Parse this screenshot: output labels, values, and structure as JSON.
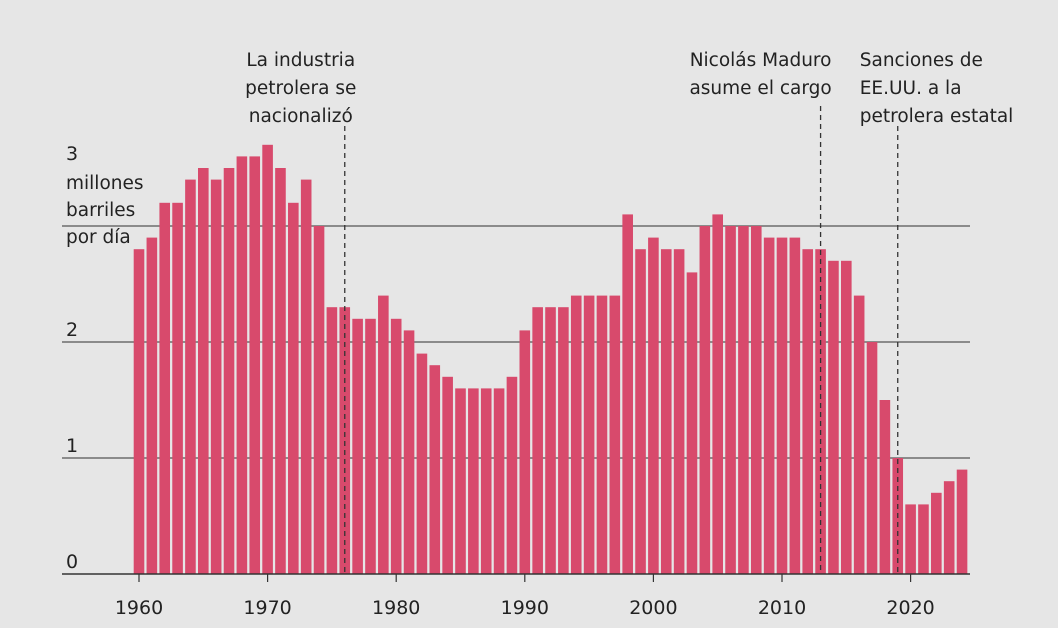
{
  "chart_data": {
    "type": "bar",
    "title": "",
    "ylabel": [
      "millones",
      "barriles",
      "por día"
    ],
    "xlabel": "",
    "ylim": [
      0,
      3.6
    ],
    "yticks": [
      0,
      1,
      2,
      3
    ],
    "xticks": [
      1960,
      1970,
      1980,
      1990,
      2000,
      2010,
      2020
    ],
    "grid": true,
    "bar_color": "#d84a6c",
    "x": [
      1960,
      1961,
      1962,
      1963,
      1964,
      1965,
      1966,
      1967,
      1968,
      1969,
      1970,
      1971,
      1972,
      1973,
      1974,
      1975,
      1976,
      1977,
      1978,
      1979,
      1980,
      1981,
      1982,
      1983,
      1984,
      1985,
      1986,
      1987,
      1988,
      1989,
      1990,
      1991,
      1992,
      1993,
      1994,
      1995,
      1996,
      1997,
      1998,
      1999,
      2000,
      2001,
      2002,
      2003,
      2004,
      2005,
      2006,
      2007,
      2008,
      2009,
      2010,
      2011,
      2012,
      2013,
      2014,
      2015,
      2016,
      2017,
      2018,
      2019,
      2020,
      2021,
      2022,
      2023,
      2024
    ],
    "values": [
      2.8,
      2.9,
      3.2,
      3.2,
      3.4,
      3.5,
      3.4,
      3.5,
      3.6,
      3.6,
      3.7,
      3.5,
      3.2,
      3.4,
      3.0,
      2.3,
      2.3,
      2.2,
      2.2,
      2.4,
      2.2,
      2.1,
      1.9,
      1.8,
      1.7,
      1.6,
      1.6,
      1.6,
      1.6,
      1.7,
      2.1,
      2.3,
      2.3,
      2.3,
      2.4,
      2.4,
      2.4,
      2.4,
      3.1,
      2.8,
      2.9,
      2.8,
      2.8,
      2.6,
      3.0,
      3.1,
      3.0,
      3.0,
      3.0,
      2.9,
      2.9,
      2.9,
      2.8,
      2.8,
      2.7,
      2.7,
      2.4,
      2.0,
      1.5,
      1.0,
      0.6,
      0.6,
      0.7,
      0.8,
      0.9
    ],
    "annotations": [
      {
        "year": 1976,
        "lines": [
          "La industria",
          "petrolera se",
          "nacionalizó"
        ]
      },
      {
        "year": 2013,
        "lines": [
          "Nicolás Maduro",
          "asume el cargo"
        ]
      },
      {
        "year": 2019,
        "lines": [
          "Sanciones de",
          "EE.UU. a la",
          "petrolera estatal"
        ]
      }
    ]
  }
}
